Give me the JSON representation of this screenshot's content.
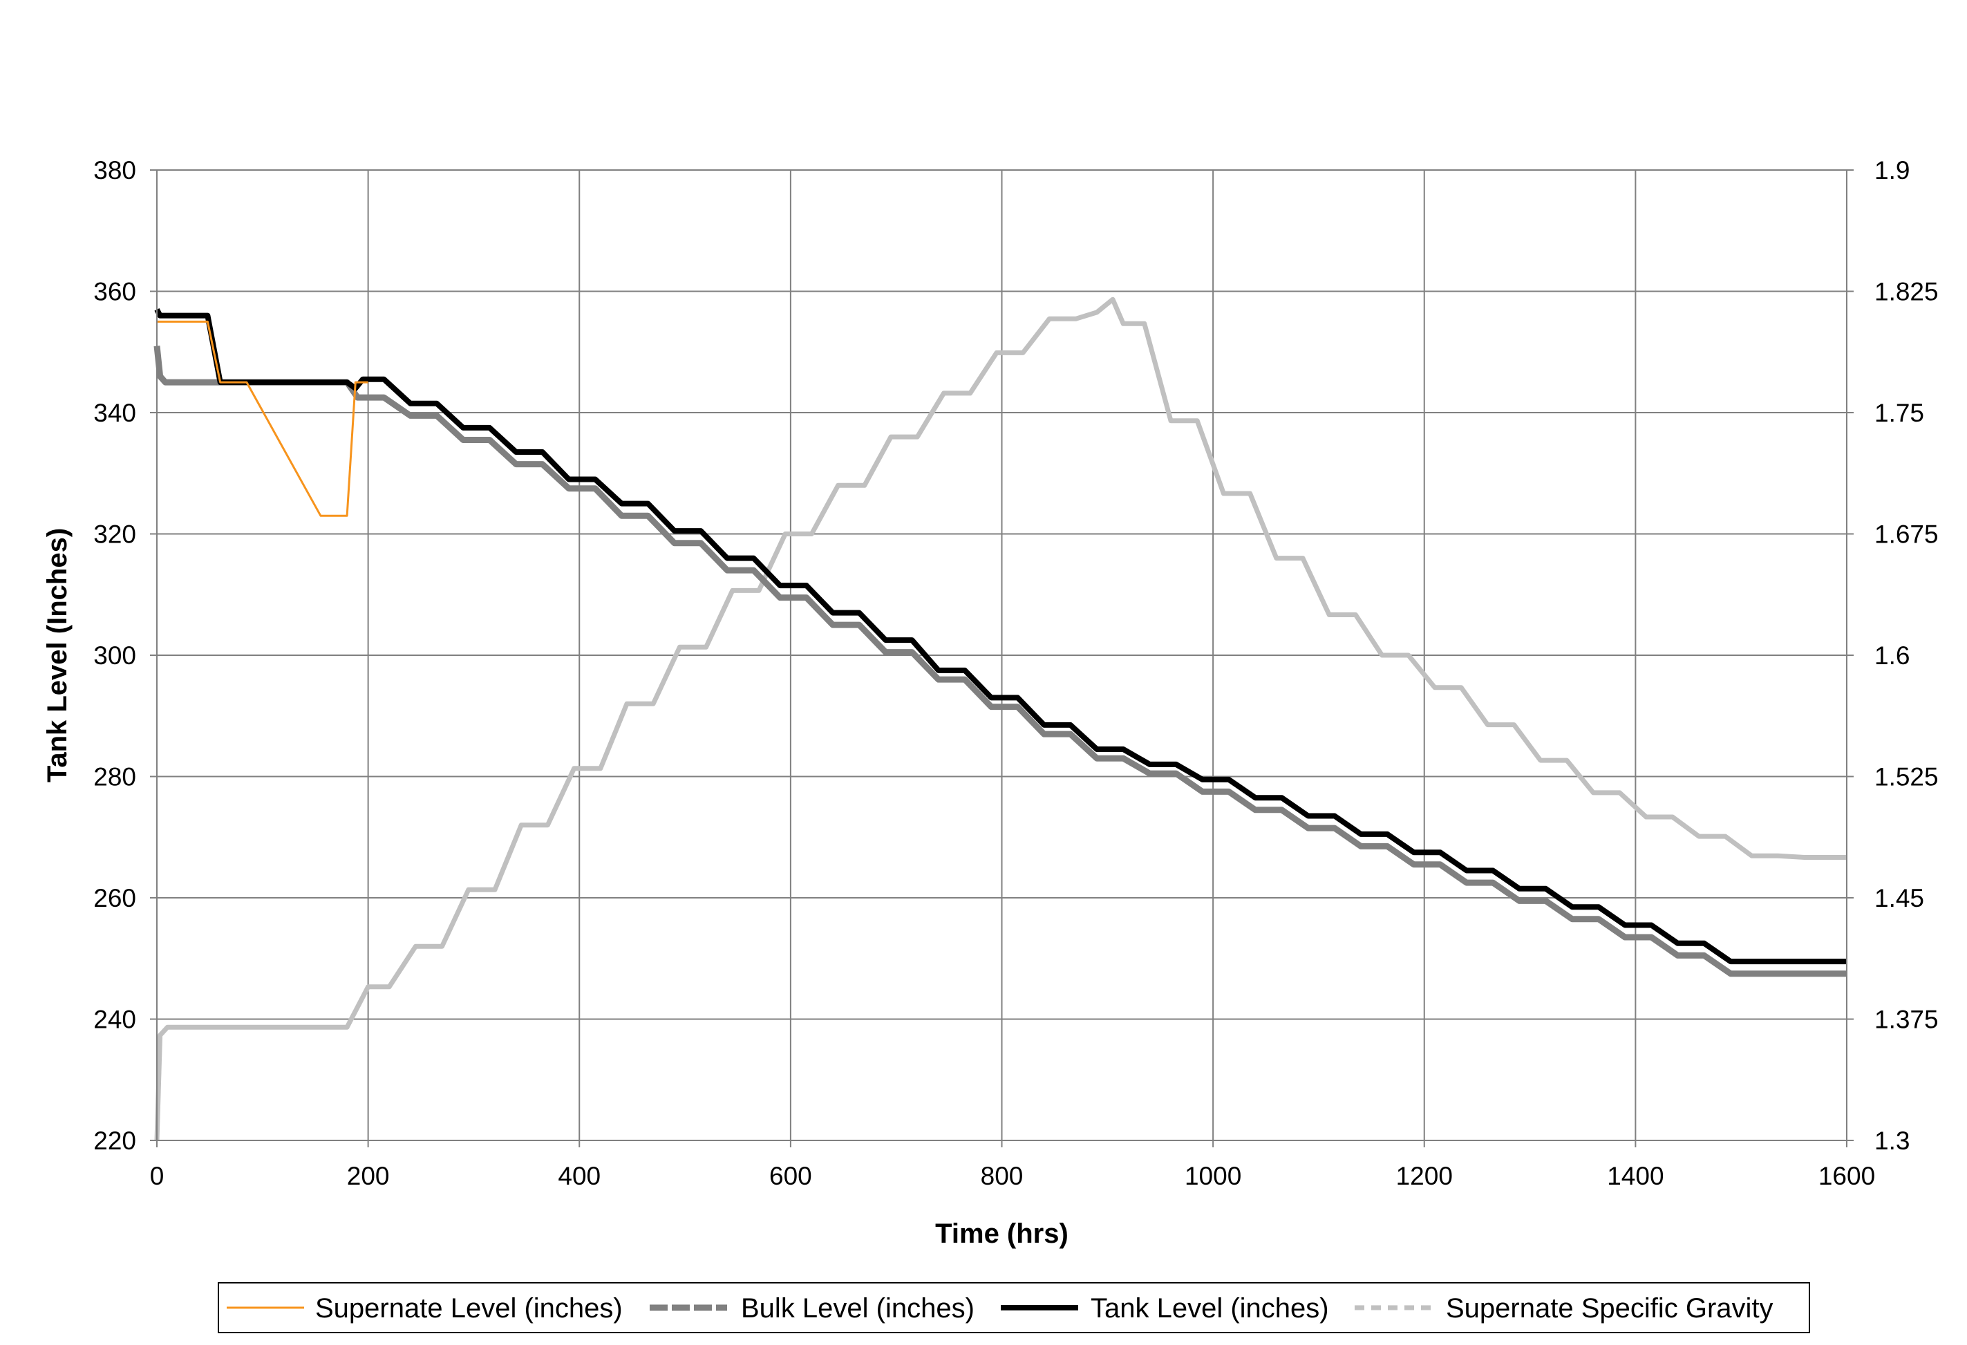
{
  "chart_data": {
    "type": "line",
    "title": "",
    "xlabel": "Time (hrs)",
    "ylabel": "Tank Level (Inches)",
    "y2label": "",
    "xlim": [
      0,
      1600
    ],
    "ylim": [
      220,
      380
    ],
    "y2lim": [
      1.3,
      1.9
    ],
    "x_ticks": [
      "0",
      "200",
      "400",
      "600",
      "800",
      "1000",
      "1200",
      "1400",
      "1600"
    ],
    "y_ticks": [
      "220",
      "240",
      "260",
      "280",
      "300",
      "320",
      "340",
      "360",
      "380"
    ],
    "y2_ticks": [
      "1.3",
      "1.375",
      "1.45",
      "1.525",
      "1.6",
      "1.675",
      "1.75",
      "1.825",
      "1.9"
    ],
    "grid": true,
    "legend_position": "bottom",
    "colors": {
      "supernate": "#F7941D",
      "bulk": "#808080",
      "tank": "#000000",
      "sg": "#C0C0C0",
      "grid": "#808080"
    },
    "series": [
      {
        "name": "Supernate Level (inches)",
        "axis": "left",
        "style": "thin",
        "points": [
          [
            0,
            355
          ],
          [
            10,
            355
          ],
          [
            48,
            355
          ],
          [
            60,
            345
          ],
          [
            85,
            345
          ],
          [
            155,
            323
          ],
          [
            180,
            323
          ],
          [
            188,
            345
          ],
          [
            200,
            345
          ]
        ]
      },
      {
        "name": "Bulk Level (inches)",
        "axis": "left",
        "style": "thick",
        "points": [
          [
            0,
            351
          ],
          [
            3,
            346
          ],
          [
            8,
            345
          ],
          [
            180,
            345
          ],
          [
            190,
            342.5
          ],
          [
            215,
            342.5
          ],
          [
            240,
            339.5
          ],
          [
            265,
            339.5
          ],
          [
            290,
            335.5
          ],
          [
            315,
            335.5
          ],
          [
            340,
            331.5
          ],
          [
            365,
            331.5
          ],
          [
            390,
            327.5
          ],
          [
            415,
            327.5
          ],
          [
            440,
            323
          ],
          [
            465,
            323
          ],
          [
            490,
            318.5
          ],
          [
            515,
            318.5
          ],
          [
            540,
            314
          ],
          [
            565,
            314
          ],
          [
            590,
            309.5
          ],
          [
            615,
            309.5
          ],
          [
            640,
            305
          ],
          [
            665,
            305
          ],
          [
            690,
            300.5
          ],
          [
            715,
            300.5
          ],
          [
            740,
            296
          ],
          [
            765,
            296
          ],
          [
            790,
            291.5
          ],
          [
            815,
            291.5
          ],
          [
            840,
            287
          ],
          [
            865,
            287
          ],
          [
            890,
            283
          ],
          [
            915,
            283
          ],
          [
            940,
            280.5
          ],
          [
            965,
            280.5
          ],
          [
            990,
            277.5
          ],
          [
            1015,
            277.5
          ],
          [
            1040,
            274.5
          ],
          [
            1065,
            274.5
          ],
          [
            1090,
            271.5
          ],
          [
            1115,
            271.5
          ],
          [
            1140,
            268.5
          ],
          [
            1165,
            268.5
          ],
          [
            1190,
            265.5
          ],
          [
            1215,
            265.5
          ],
          [
            1240,
            262.5
          ],
          [
            1265,
            262.5
          ],
          [
            1290,
            259.5
          ],
          [
            1315,
            259.5
          ],
          [
            1340,
            256.5
          ],
          [
            1365,
            256.5
          ],
          [
            1390,
            253.5
          ],
          [
            1415,
            253.5
          ],
          [
            1440,
            250.5
          ],
          [
            1465,
            250.5
          ],
          [
            1490,
            247.5
          ],
          [
            1600,
            247.5
          ]
        ]
      },
      {
        "name": "Tank Level (inches)",
        "axis": "left",
        "style": "thick",
        "points": [
          [
            0,
            357
          ],
          [
            3,
            356
          ],
          [
            48,
            356
          ],
          [
            60,
            345
          ],
          [
            180,
            345
          ],
          [
            188,
            344
          ],
          [
            195,
            345.5
          ],
          [
            215,
            345.5
          ],
          [
            240,
            341.5
          ],
          [
            265,
            341.5
          ],
          [
            290,
            337.5
          ],
          [
            315,
            337.5
          ],
          [
            340,
            333.5
          ],
          [
            365,
            333.5
          ],
          [
            390,
            329
          ],
          [
            415,
            329
          ],
          [
            440,
            325
          ],
          [
            465,
            325
          ],
          [
            490,
            320.5
          ],
          [
            515,
            320.5
          ],
          [
            540,
            316
          ],
          [
            565,
            316
          ],
          [
            590,
            311.5
          ],
          [
            615,
            311.5
          ],
          [
            640,
            307
          ],
          [
            665,
            307
          ],
          [
            690,
            302.5
          ],
          [
            715,
            302.5
          ],
          [
            740,
            297.5
          ],
          [
            765,
            297.5
          ],
          [
            790,
            293
          ],
          [
            815,
            293
          ],
          [
            840,
            288.5
          ],
          [
            865,
            288.5
          ],
          [
            890,
            284.5
          ],
          [
            915,
            284.5
          ],
          [
            940,
            282
          ],
          [
            965,
            282
          ],
          [
            990,
            279.5
          ],
          [
            1015,
            279.5
          ],
          [
            1040,
            276.5
          ],
          [
            1065,
            276.5
          ],
          [
            1090,
            273.5
          ],
          [
            1115,
            273.5
          ],
          [
            1140,
            270.5
          ],
          [
            1165,
            270.5
          ],
          [
            1190,
            267.5
          ],
          [
            1215,
            267.5
          ],
          [
            1240,
            264.5
          ],
          [
            1265,
            264.5
          ],
          [
            1290,
            261.5
          ],
          [
            1315,
            261.5
          ],
          [
            1340,
            258.5
          ],
          [
            1365,
            258.5
          ],
          [
            1390,
            255.5
          ],
          [
            1415,
            255.5
          ],
          [
            1440,
            252.5
          ],
          [
            1465,
            252.5
          ],
          [
            1490,
            249.5
          ],
          [
            1600,
            249.5
          ]
        ]
      },
      {
        "name": "Supernate Specific Gravity",
        "axis": "right",
        "style": "dashed",
        "points": [
          [
            0,
            1.3
          ],
          [
            3,
            1.365
          ],
          [
            10,
            1.37
          ],
          [
            180,
            1.37
          ],
          [
            200,
            1.395
          ],
          [
            220,
            1.395
          ],
          [
            245,
            1.42
          ],
          [
            270,
            1.42
          ],
          [
            295,
            1.455
          ],
          [
            320,
            1.455
          ],
          [
            345,
            1.495
          ],
          [
            370,
            1.495
          ],
          [
            395,
            1.53
          ],
          [
            420,
            1.53
          ],
          [
            445,
            1.57
          ],
          [
            470,
            1.57
          ],
          [
            495,
            1.605
          ],
          [
            520,
            1.605
          ],
          [
            545,
            1.64
          ],
          [
            570,
            1.64
          ],
          [
            595,
            1.675
          ],
          [
            620,
            1.675
          ],
          [
            645,
            1.705
          ],
          [
            670,
            1.705
          ],
          [
            695,
            1.735
          ],
          [
            720,
            1.735
          ],
          [
            745,
            1.762
          ],
          [
            770,
            1.762
          ],
          [
            795,
            1.787
          ],
          [
            820,
            1.787
          ],
          [
            845,
            1.808
          ],
          [
            870,
            1.808
          ],
          [
            890,
            1.812
          ],
          [
            905,
            1.82
          ],
          [
            915,
            1.805
          ],
          [
            935,
            1.805
          ],
          [
            960,
            1.745
          ],
          [
            985,
            1.745
          ],
          [
            1010,
            1.7
          ],
          [
            1035,
            1.7
          ],
          [
            1060,
            1.66
          ],
          [
            1085,
            1.66
          ],
          [
            1110,
            1.625
          ],
          [
            1135,
            1.625
          ],
          [
            1160,
            1.6
          ],
          [
            1185,
            1.6
          ],
          [
            1210,
            1.58
          ],
          [
            1235,
            1.58
          ],
          [
            1260,
            1.557
          ],
          [
            1285,
            1.557
          ],
          [
            1310,
            1.535
          ],
          [
            1335,
            1.535
          ],
          [
            1360,
            1.515
          ],
          [
            1385,
            1.515
          ],
          [
            1410,
            1.5
          ],
          [
            1435,
            1.5
          ],
          [
            1460,
            1.488
          ],
          [
            1485,
            1.488
          ],
          [
            1510,
            1.476
          ],
          [
            1535,
            1.476
          ],
          [
            1560,
            1.475
          ],
          [
            1600,
            1.475
          ]
        ]
      }
    ]
  }
}
